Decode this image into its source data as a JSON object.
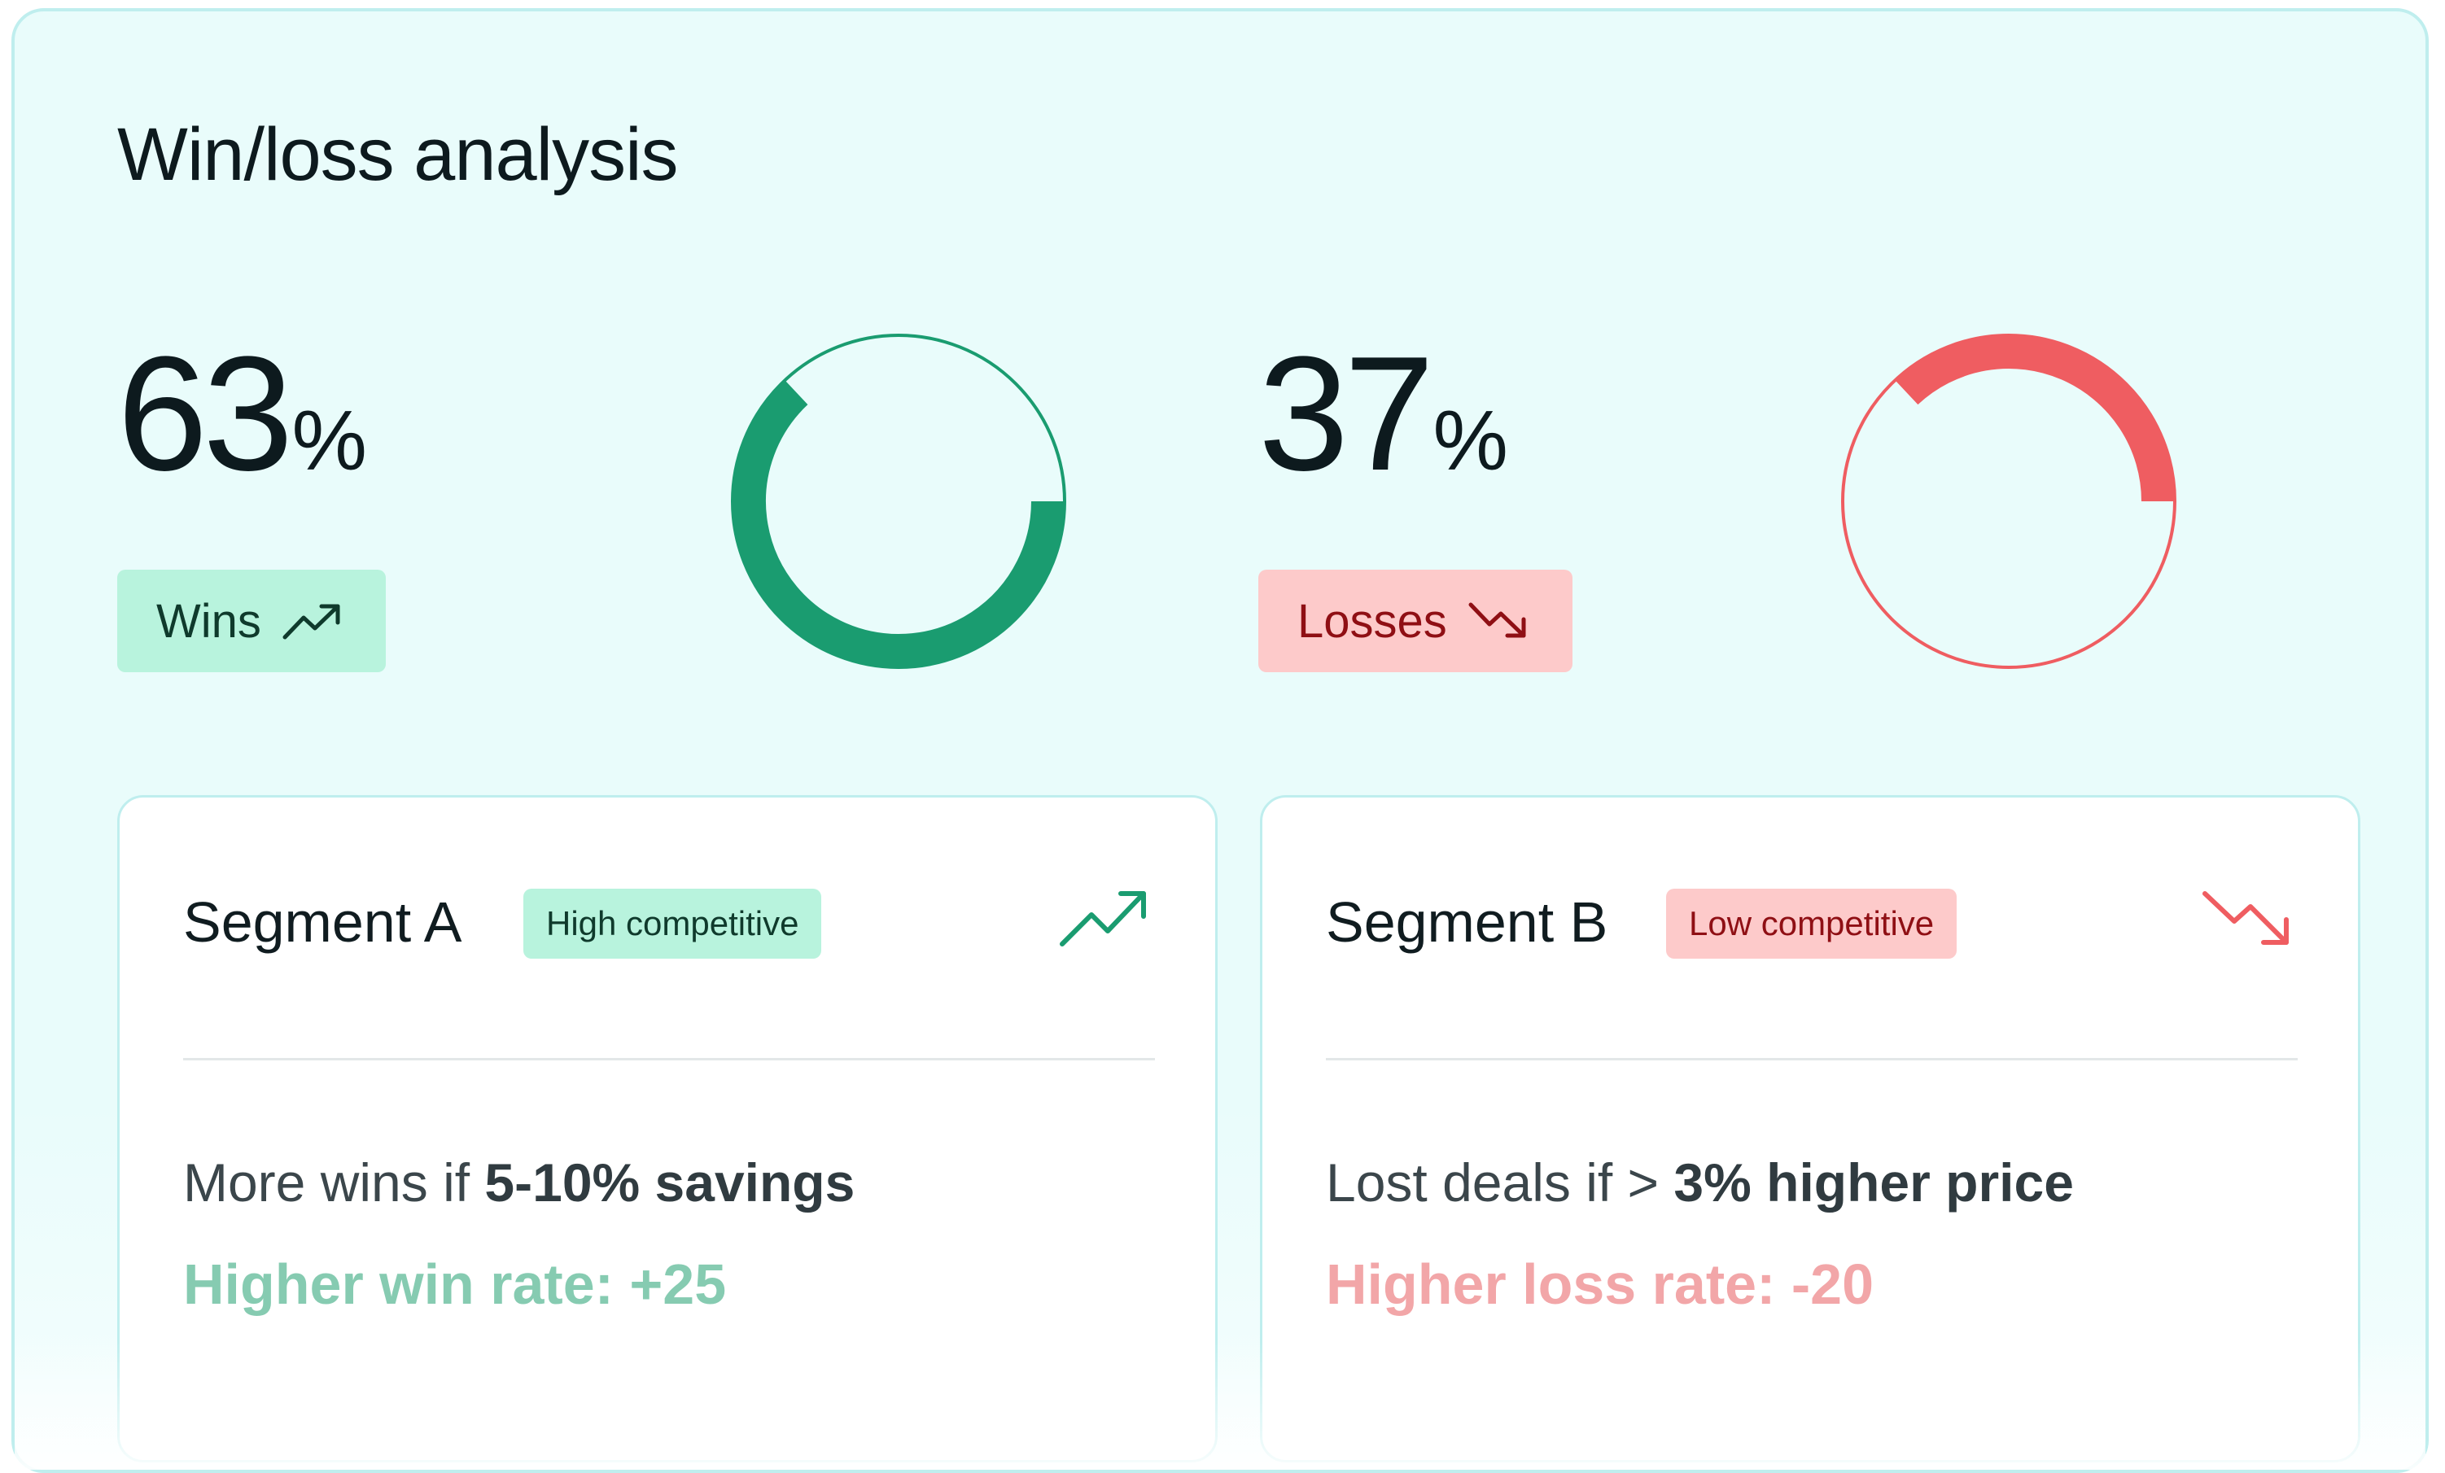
{
  "header": {
    "title": "Win/loss analysis"
  },
  "wins": {
    "value": "63",
    "unit": "%",
    "fraction": 0.63,
    "badge_label": "Wins",
    "icon": "trending-up-icon",
    "color": "#1a9c70"
  },
  "losses": {
    "value": "37",
    "unit": "%",
    "fraction": 0.37,
    "badge_label": "Losses",
    "icon": "trending-down-icon",
    "color": "#ef5d61"
  },
  "segments": [
    {
      "title": "Segment A",
      "tag": "High competitive",
      "icon": "trending-up-icon",
      "condition_prefix": "More wins if ",
      "condition_bold": "5-10% savings",
      "rate_text": "Higher win rate: +25"
    },
    {
      "title": "Segment B",
      "tag": "Low competitive",
      "icon": "trending-down-icon",
      "condition_prefix": "Lost deals if > ",
      "condition_bold": "3% higher price",
      "rate_text": "Higher loss rate: -20"
    }
  ],
  "colors": {
    "panel_bg": "#e9fcfb",
    "win_badge_bg": "#b8f3dd",
    "loss_badge_bg": "#fdcaca",
    "win_rate_text": "#86cbb1",
    "loss_rate_text": "#f2a6a8"
  }
}
